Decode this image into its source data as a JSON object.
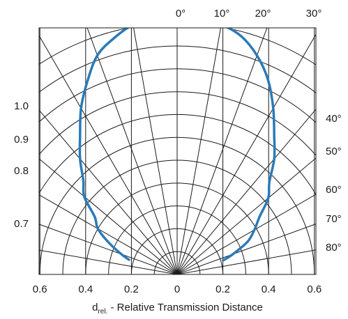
{
  "chart_data": {
    "type": "line",
    "coordinate_system": "polar",
    "title": "",
    "xlabel": "d_rel. - Relative Transmission Distance",
    "xlabel_main": "d",
    "xlabel_sub": "rel.",
    "xlabel_rest": " - Relative Transmission Distance",
    "x_ticks": [
      "0.6",
      "0.4",
      "0.2",
      "0",
      "0.2",
      "0.4",
      "0.6"
    ],
    "x_tick_values": [
      -0.6,
      -0.4,
      -0.2,
      0,
      0.2,
      0.4,
      0.6
    ],
    "angle_ticks_top": [
      "0°",
      "10°",
      "20°",
      "30°"
    ],
    "angle_ticks_right": [
      "40°",
      "50°",
      "60°",
      "70°",
      "80°"
    ],
    "radius_ticks_left": [
      "1.0",
      "0.9",
      "0.8",
      "0.7"
    ],
    "angle_range_deg": [
      -90,
      90
    ],
    "radial_gridlines": [
      0.1,
      0.2,
      0.3,
      0.4,
      0.5,
      0.6,
      0.7,
      0.8,
      0.9,
      1.0,
      1.1
    ],
    "angular_gridline_step_deg": 10,
    "grid": true,
    "line_color": "#2a7ab8",
    "grid_color": "#1a1a1a",
    "series": [
      {
        "angles_deg": [
          -73,
          -70,
          -65,
          -60,
          -55,
          -50,
          -45,
          -40,
          -35,
          -30,
          -25,
          -20,
          -15,
          -10,
          -5,
          0,
          5,
          10,
          15,
          20,
          25,
          30,
          35,
          40,
          45,
          50,
          55,
          60,
          65,
          70,
          73
        ],
        "values": [
          0.22,
          0.26,
          0.33,
          0.4,
          0.44,
          0.53,
          0.58,
          0.66,
          0.74,
          0.84,
          0.93,
          1.02,
          1.07,
          1.11,
          1.13,
          1.13,
          1.12,
          1.11,
          1.08,
          1.02,
          0.94,
          0.84,
          0.74,
          0.66,
          0.57,
          0.52,
          0.44,
          0.39,
          0.34,
          0.26,
          0.21
        ]
      }
    ]
  }
}
